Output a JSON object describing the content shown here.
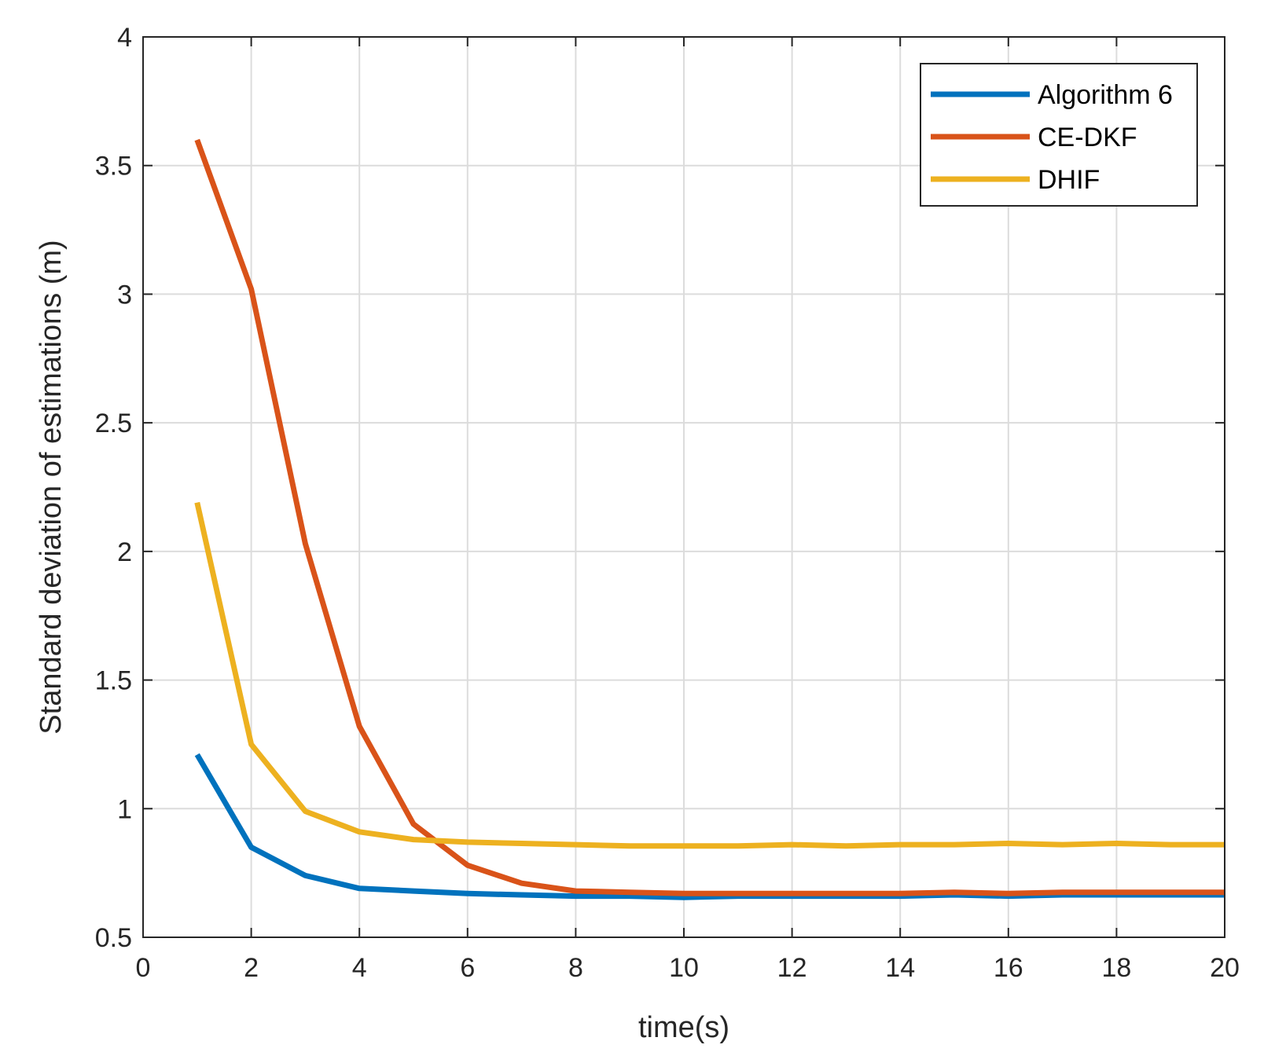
{
  "chart_data": {
    "type": "line",
    "title": "",
    "xlabel": "time(s)",
    "ylabel": "Standard deviation of estimations (m)",
    "xlim": [
      0,
      20
    ],
    "ylim": [
      0.5,
      4
    ],
    "xticks": [
      0,
      2,
      4,
      6,
      8,
      10,
      12,
      14,
      16,
      18,
      20
    ],
    "yticks": [
      0.5,
      1,
      1.5,
      2,
      2.5,
      3,
      3.5,
      4
    ],
    "xtick_labels": [
      "0",
      "2",
      "4",
      "6",
      "8",
      "10",
      "12",
      "14",
      "16",
      "18",
      "20"
    ],
    "ytick_labels": [
      "0.5",
      "1",
      "1.5",
      "2",
      "2.5",
      "3",
      "3.5",
      "4"
    ],
    "grid": true,
    "legend_position": "top-right",
    "x": [
      1,
      2,
      3,
      4,
      5,
      6,
      7,
      8,
      9,
      10,
      11,
      12,
      13,
      14,
      15,
      16,
      17,
      18,
      19,
      20
    ],
    "series": [
      {
        "name": "Algorithm 6",
        "color": "#0072BD",
        "values": [
          1.21,
          0.85,
          0.74,
          0.69,
          0.68,
          0.67,
          0.665,
          0.66,
          0.66,
          0.655,
          0.66,
          0.66,
          0.66,
          0.66,
          0.665,
          0.66,
          0.665,
          0.665,
          0.665,
          0.665
        ]
      },
      {
        "name": "CE-DKF",
        "color": "#D95319",
        "values": [
          3.6,
          3.02,
          2.03,
          1.32,
          0.94,
          0.78,
          0.71,
          0.68,
          0.675,
          0.67,
          0.67,
          0.67,
          0.67,
          0.67,
          0.675,
          0.67,
          0.675,
          0.675,
          0.675,
          0.675
        ]
      },
      {
        "name": "DHIF",
        "color": "#EDB120",
        "values": [
          2.19,
          1.25,
          0.99,
          0.91,
          0.88,
          0.87,
          0.865,
          0.86,
          0.855,
          0.855,
          0.855,
          0.86,
          0.855,
          0.86,
          0.86,
          0.865,
          0.86,
          0.865,
          0.86,
          0.86
        ]
      }
    ]
  }
}
